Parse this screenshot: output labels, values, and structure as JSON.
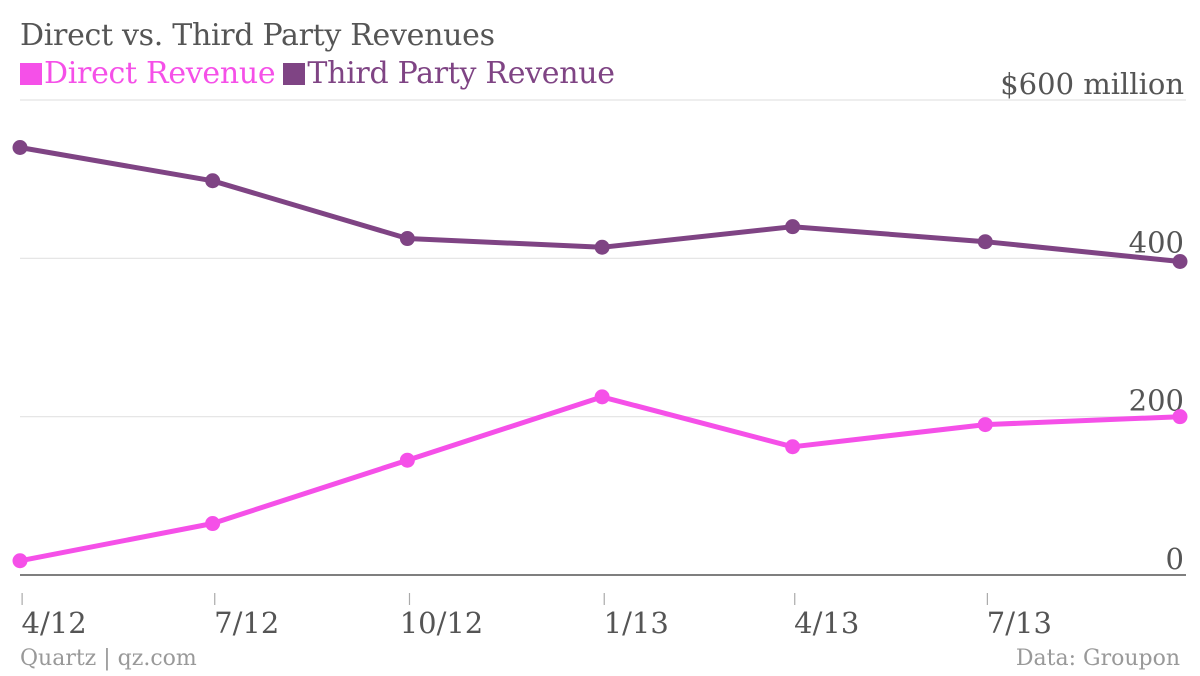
{
  "header": {
    "title": "Direct vs. Third Party Revenues"
  },
  "legend": [
    {
      "label": "Direct Revenue",
      "color": "#f550e8"
    },
    {
      "label": "Third Party Revenue",
      "color": "#7f4484"
    }
  ],
  "footer": {
    "source_left": "Quartz | qz.com",
    "source_right": "Data: Groupon"
  },
  "chart_data": {
    "type": "line",
    "title": "Direct vs. Third Party Revenues",
    "x": [
      "2012-03-31",
      "2012-06-30",
      "2012-09-30",
      "2012-12-31",
      "2013-03-31",
      "2013-06-30",
      "2013-09-30"
    ],
    "x_ticks": [
      "4/12",
      "7/12",
      "10/12",
      "1/13",
      "4/13",
      "7/13"
    ],
    "x_tick_dates": [
      "2012-04-01",
      "2012-07-01",
      "2012-10-01",
      "2013-01-01",
      "2013-04-01",
      "2013-07-01"
    ],
    "xlim": [
      "2012-03-31",
      "2013-09-30"
    ],
    "ylim": [
      0,
      600
    ],
    "y_ticks": [
      {
        "value": 0,
        "label": "0"
      },
      {
        "value": 200,
        "label": "200"
      },
      {
        "value": 400,
        "label": "400"
      },
      {
        "value": 600,
        "label": "$600 million"
      }
    ],
    "grid": true,
    "legend_position": "top-left",
    "series": [
      {
        "name": "Direct Revenue",
        "color": "#f550e8",
        "values": [
          18,
          65,
          145,
          225,
          162,
          190,
          200
        ]
      },
      {
        "name": "Third Party Revenue",
        "color": "#7f4484",
        "values": [
          540,
          498,
          425,
          414,
          440,
          421,
          396
        ]
      }
    ]
  }
}
